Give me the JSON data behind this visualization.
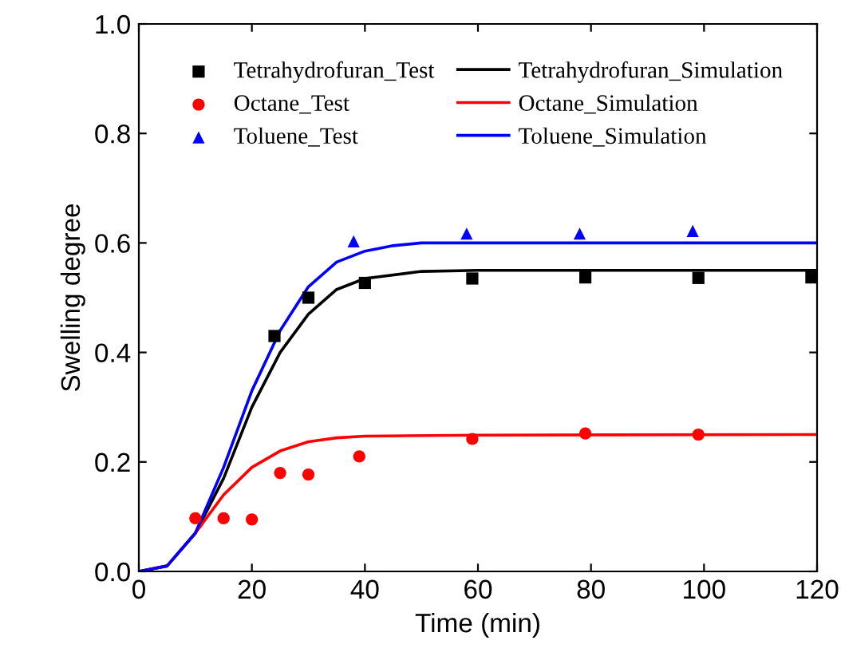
{
  "chart_data": {
    "type": "scatter",
    "xlabel": "Time (min)",
    "ylabel": "Swelling degree",
    "xlim": [
      0,
      120
    ],
    "ylim": [
      0,
      1.0
    ],
    "xticks": [
      0,
      20,
      40,
      60,
      80,
      100,
      120
    ],
    "yticks": [
      {
        "value": 0,
        "label": "0.0"
      },
      0.2,
      0.4,
      0.6,
      0.8,
      {
        "value": 1.0,
        "label": "1.0"
      }
    ],
    "grid": false,
    "legend": "top",
    "series": [
      {
        "name": "Tetrahydrofuran_Test",
        "marker": "square",
        "color": "#000000",
        "x": [
          24,
          30,
          40,
          59,
          79,
          99,
          119
        ],
        "values": [
          0.43,
          0.5,
          0.527,
          0.535,
          0.537,
          0.536,
          0.537
        ]
      },
      {
        "name": "Octane_Test",
        "marker": "circle",
        "color": "#ff0000",
        "x": [
          10,
          15,
          20,
          25,
          30,
          39,
          59,
          79,
          99
        ],
        "values": [
          0.097,
          0.097,
          0.095,
          0.18,
          0.177,
          0.21,
          0.242,
          0.252,
          0.25
        ]
      },
      {
        "name": "Toluene_Test",
        "marker": "triangle",
        "color": "#0000ff",
        "x": [
          38,
          58,
          78,
          98
        ],
        "values": [
          0.603,
          0.617,
          0.617,
          0.622
        ]
      },
      {
        "name": "Tetrahydrofuran_Simulation",
        "type": "line",
        "line_style": "solid",
        "color": "#000000",
        "x": [
          0,
          5,
          10,
          15,
          20,
          25,
          30,
          35,
          40,
          50,
          60,
          120
        ],
        "values": [
          0,
          0.01,
          0.07,
          0.17,
          0.3,
          0.4,
          0.47,
          0.515,
          0.535,
          0.548,
          0.55,
          0.55
        ]
      },
      {
        "name": "Octane_Simulation",
        "type": "line",
        "line_style": "solid",
        "color": "#ff0000",
        "x": [
          0,
          5,
          10,
          15,
          20,
          25,
          30,
          35,
          40,
          60,
          120
        ],
        "values": [
          0,
          0.01,
          0.07,
          0.14,
          0.19,
          0.22,
          0.237,
          0.244,
          0.247,
          0.249,
          0.25
        ]
      },
      {
        "name": "Toluene_Simulation",
        "type": "line",
        "line_style": "solid",
        "color": "#0000ff",
        "x": [
          0,
          5,
          10,
          15,
          20,
          25,
          30,
          35,
          40,
          45,
          50,
          120
        ],
        "values": [
          0,
          0.01,
          0.07,
          0.19,
          0.33,
          0.44,
          0.52,
          0.565,
          0.585,
          0.595,
          0.6,
          0.6
        ]
      }
    ]
  }
}
